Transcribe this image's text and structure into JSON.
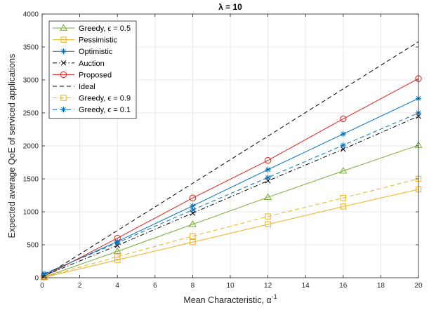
{
  "chart_data": {
    "type": "line",
    "title": "λ = 10",
    "xlabel": "Mean Characteristic, α",
    "xlabel_sup": "-1",
    "ylabel": "Expected average QoE of serviced applications",
    "xlim": [
      0,
      20
    ],
    "ylim": [
      0,
      4000
    ],
    "xticks": [
      0,
      2,
      4,
      6,
      8,
      10,
      12,
      14,
      16,
      18,
      20
    ],
    "yticks": [
      0,
      500,
      1000,
      1500,
      2000,
      2500,
      3000,
      3500,
      4000
    ],
    "grid": true,
    "legend_position": "top-left",
    "series": [
      {
        "name": "Greedy, ϵ = 0.5",
        "color": "#77AC30",
        "dash": "solid",
        "marker": "triangle",
        "x": [
          0.1,
          4,
          8,
          12,
          16,
          20
        ],
        "y": [
          10,
          400,
          810,
          1220,
          1620,
          2010
        ]
      },
      {
        "name": "Pessimistic",
        "color": "#EDB120",
        "dash": "solid",
        "marker": "square",
        "x": [
          0.1,
          4,
          8,
          12,
          16,
          20
        ],
        "y": [
          5,
          270,
          540,
          810,
          1080,
          1340
        ]
      },
      {
        "name": "Optimistic",
        "color": "#0072BD",
        "dash": "solid",
        "marker": "asterisk",
        "x": [
          0.1,
          4,
          8,
          12,
          16,
          20
        ],
        "y": [
          50,
          550,
          1090,
          1640,
          2180,
          2720
        ]
      },
      {
        "name": "Auction",
        "color": "#000000",
        "dash": "dashdot",
        "marker": "x",
        "x": [
          0.1,
          4,
          8,
          12,
          16,
          20
        ],
        "y": [
          30,
          490,
          980,
          1470,
          1950,
          2450
        ]
      },
      {
        "name": "Proposed",
        "color": "#E0201B",
        "dash": "solid",
        "marker": "circle",
        "x": [
          0.1,
          4,
          8,
          12,
          16,
          20
        ],
        "y": [
          20,
          600,
          1210,
          1780,
          2410,
          3020
        ]
      },
      {
        "name": "Ideal",
        "color": "#000000",
        "dash": "dashed",
        "marker": "none",
        "x": [
          0,
          20
        ],
        "y": [
          0,
          3580
        ]
      },
      {
        "name": "Greedy, ϵ = 0.9",
        "color": "#EDB120",
        "dash": "dashed",
        "marker": "square",
        "x": [
          0.1,
          4,
          8,
          12,
          16,
          20
        ],
        "y": [
          10,
          320,
          630,
          930,
          1210,
          1500
        ]
      },
      {
        "name": "Greedy, ϵ = 0.1",
        "color": "#0072BD",
        "dash": "dashed",
        "marker": "asterisk",
        "x": [
          0.1,
          4,
          8,
          12,
          16,
          20
        ],
        "y": [
          60,
          530,
          1030,
          1520,
          2010,
          2500
        ]
      }
    ]
  }
}
